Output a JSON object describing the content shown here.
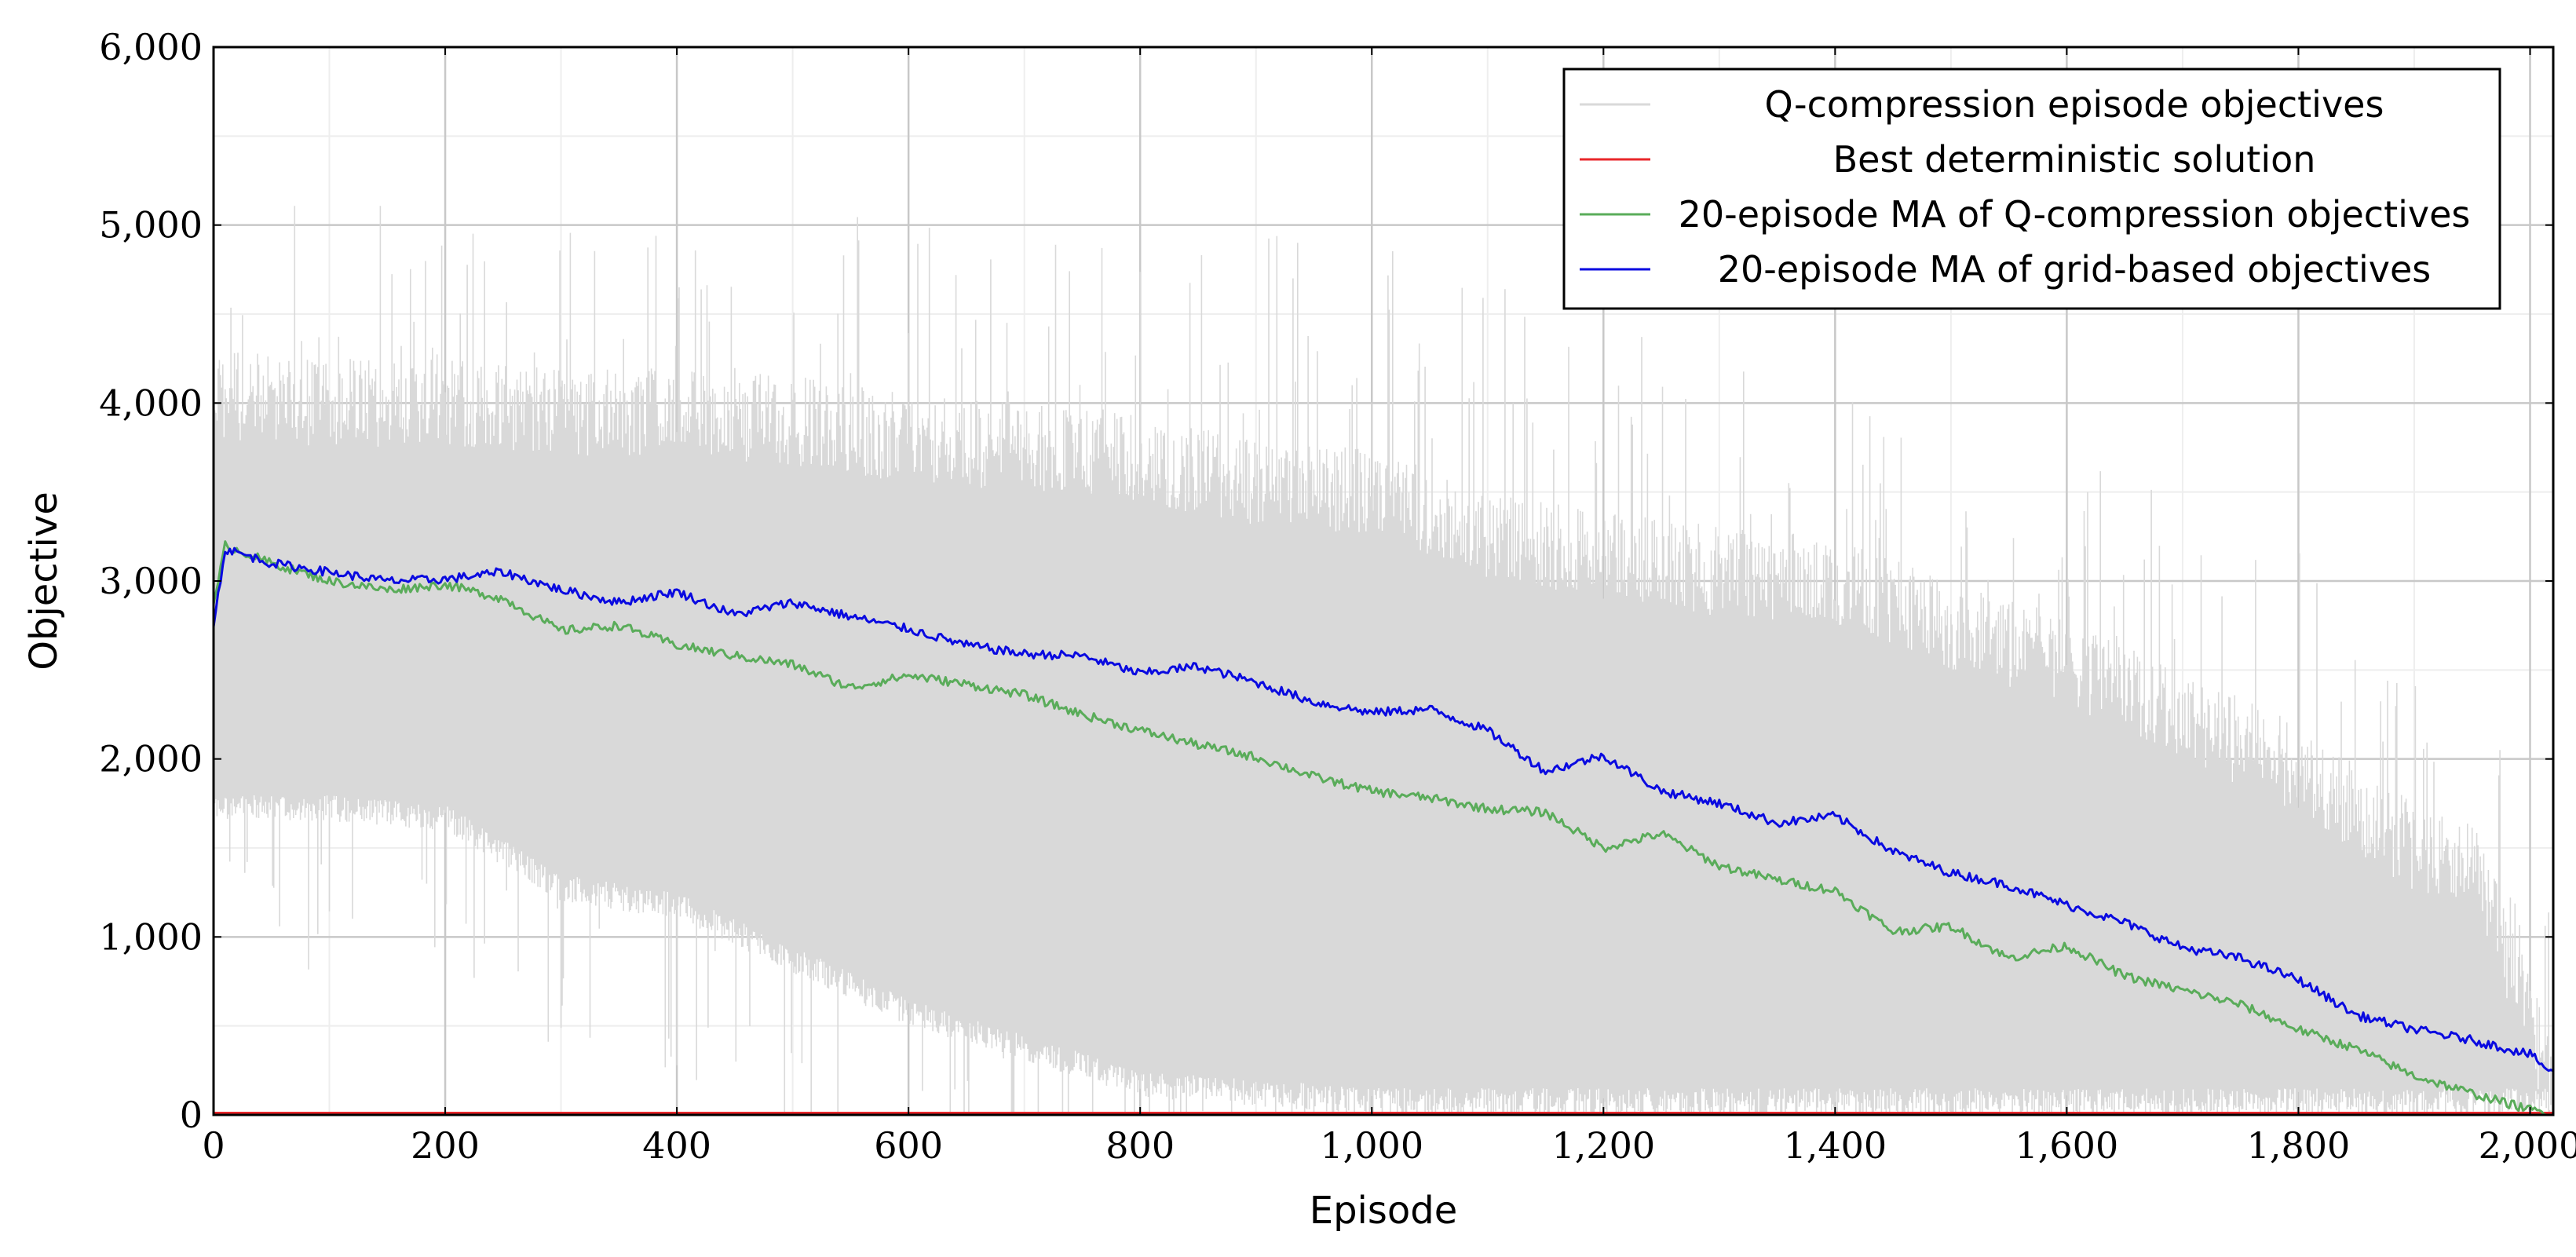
{
  "chart_data": {
    "type": "line",
    "title": "",
    "xlabel": "Episode",
    "ylabel": "Objective",
    "xlim": [
      0,
      2020
    ],
    "ylim": [
      0,
      6000
    ],
    "x_ticks": [
      0,
      200,
      400,
      600,
      800,
      1000,
      1200,
      1400,
      1600,
      1800,
      2000
    ],
    "y_ticks": [
      0,
      1000,
      2000,
      3000,
      4000,
      5000,
      6000
    ],
    "x_tick_labels": [
      "0",
      "200",
      "400",
      "600",
      "800",
      "1,000",
      "1,200",
      "1,400",
      "1,600",
      "1,800",
      "2,000"
    ],
    "y_tick_labels": [
      "0",
      "1,000",
      "2,000",
      "3,000",
      "4,000",
      "5,000",
      "6,000"
    ],
    "grid": true,
    "legend_position": "top-right",
    "series": [
      {
        "name": "Q-compression episode objectives",
        "color": "#d9d9d9",
        "style": "noisy band",
        "envelope": {
          "x": [
            0,
            100,
            200,
            300,
            400,
            500,
            600,
            700,
            800,
            900,
            1000,
            1100,
            1200,
            1300,
            1400,
            1500,
            1600,
            1700,
            1800,
            1900,
            1950,
            2020
          ],
          "upper": [
            4300,
            4250,
            4250,
            4200,
            4200,
            4150,
            4050,
            4000,
            3950,
            3800,
            3750,
            3500,
            3400,
            3300,
            3250,
            3000,
            2800,
            2500,
            2200,
            1750,
            1700,
            400
          ],
          "lower": [
            1650,
            1650,
            1600,
            1200,
            1100,
            800,
            500,
            300,
            100,
            50,
            0,
            0,
            0,
            0,
            0,
            0,
            0,
            0,
            0,
            0,
            0,
            0
          ],
          "spike_max": [
            5150,
            5100,
            5200,
            5100,
            5100,
            5150,
            5100,
            5000,
            4900,
            5150,
            4900,
            4800,
            4500,
            4200,
            4100,
            3700,
            3700,
            3500,
            3300,
            2500,
            2400,
            1700
          ]
        }
      },
      {
        "name": "Best deterministic solution",
        "color": "#e8262a",
        "x": [
          0,
          2020
        ],
        "values": [
          10,
          10
        ]
      },
      {
        "name": "20-episode MA of Q-compression objectives",
        "color": "#5aac5a",
        "x": [
          0,
          10,
          50,
          100,
          150,
          200,
          250,
          300,
          350,
          400,
          450,
          500,
          550,
          600,
          650,
          700,
          750,
          800,
          850,
          900,
          950,
          1000,
          1050,
          1100,
          1150,
          1200,
          1250,
          1300,
          1350,
          1400,
          1450,
          1500,
          1550,
          1600,
          1650,
          1700,
          1750,
          1800,
          1850,
          1900,
          1950,
          2000,
          2020
        ],
        "values": [
          2850,
          3200,
          3100,
          3000,
          2950,
          2980,
          2900,
          2720,
          2750,
          2640,
          2580,
          2530,
          2400,
          2470,
          2420,
          2360,
          2250,
          2160,
          2080,
          2010,
          1900,
          1820,
          1780,
          1720,
          1700,
          1500,
          1580,
          1400,
          1320,
          1260,
          1030,
          1060,
          880,
          950,
          780,
          700,
          620,
          480,
          370,
          220,
          120,
          30,
          0
        ]
      },
      {
        "name": "20-episode MA of grid-based objectives",
        "color": "#0a0ae0",
        "x": [
          0,
          10,
          50,
          100,
          150,
          200,
          250,
          300,
          350,
          400,
          450,
          500,
          550,
          600,
          650,
          700,
          750,
          800,
          850,
          900,
          950,
          1000,
          1050,
          1100,
          1150,
          1200,
          1250,
          1300,
          1350,
          1400,
          1450,
          1500,
          1550,
          1600,
          1650,
          1700,
          1750,
          1800,
          1850,
          1900,
          1950,
          2000,
          2020
        ],
        "values": [
          2750,
          3180,
          3100,
          3050,
          3000,
          3010,
          3050,
          2950,
          2880,
          2940,
          2810,
          2880,
          2800,
          2730,
          2640,
          2590,
          2580,
          2480,
          2520,
          2430,
          2320,
          2260,
          2280,
          2160,
          1930,
          2020,
          1820,
          1750,
          1640,
          1680,
          1480,
          1360,
          1290,
          1180,
          1080,
          940,
          880,
          760,
          560,
          480,
          420,
          340,
          230
        ]
      }
    ]
  }
}
